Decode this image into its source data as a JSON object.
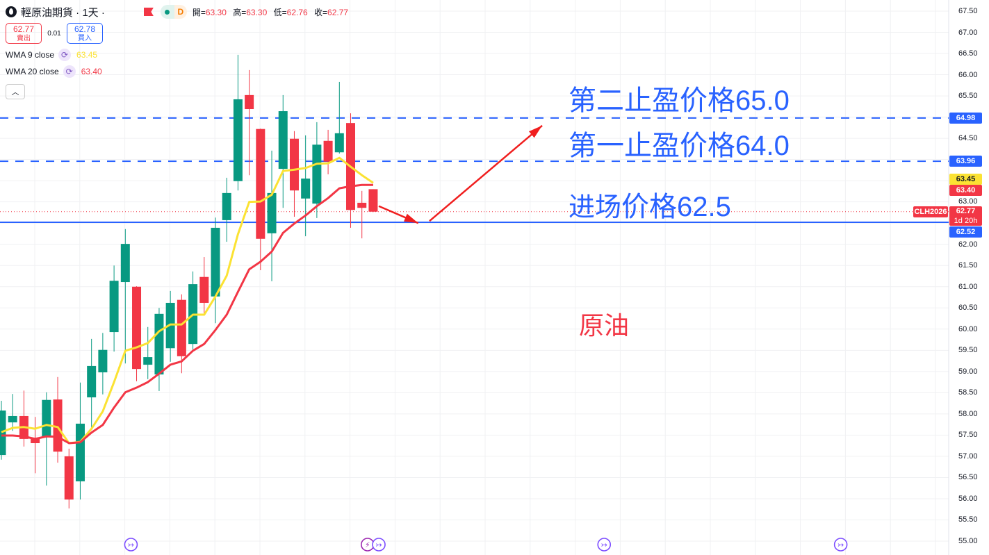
{
  "header": {
    "symbol_title": "輕原油期貨 · 1天 ·",
    "ohlc": [
      {
        "label": "開=",
        "value": "63.30"
      },
      {
        "label": "高=",
        "value": "63.30"
      },
      {
        "label": "低=",
        "value": "62.76"
      },
      {
        "label": "收=",
        "value": "62.77"
      }
    ],
    "market_status": "D",
    "sell": {
      "price": "62.77",
      "label": "賣出"
    },
    "spread": "0.01",
    "buy": {
      "price": "62.78",
      "label": "買入"
    },
    "indicators": [
      {
        "name": "WMA 9 close",
        "value": "63.45",
        "color": "#fbe233"
      },
      {
        "name": "WMA 20 close",
        "value": "63.40",
        "color": "#f23645"
      }
    ],
    "collapse_icon": "chevron-up-icon"
  },
  "annotations": {
    "tp2": "第二止盈价格65.0",
    "tp1": "第一止盈价格64.0",
    "entry_a": "进场",
    "entry_b": "价格62.5",
    "label": "原油"
  },
  "colors": {
    "up": "#089981",
    "down": "#f23645",
    "wma9": "#fbe233",
    "wma20": "#f23645",
    "lines": "#2962ff",
    "events": "#7c4dff"
  },
  "chart_data": {
    "type": "candlestick",
    "ylim": [
      55.0,
      67.5
    ],
    "grid": true,
    "y_tick_labels": [
      "67.50",
      "67.00",
      "66.50",
      "66.00",
      "65.50",
      "64.50",
      "63.00",
      "62.00",
      "61.50",
      "61.00",
      "60.50",
      "60.00",
      "59.50",
      "59.00",
      "58.50",
      "58.00",
      "57.50",
      "57.00",
      "56.50",
      "56.00",
      "55.50",
      "55.00"
    ],
    "candles": [
      [
        57.03,
        58.31,
        56.92,
        58.08
      ],
      [
        57.8,
        58.47,
        57.6,
        57.95
      ],
      [
        57.95,
        58.55,
        57.23,
        57.41
      ],
      [
        57.44,
        57.93,
        56.6,
        57.31
      ],
      [
        57.46,
        58.51,
        56.31,
        58.33
      ],
      [
        58.34,
        58.87,
        56.85,
        57.11
      ],
      [
        57.0,
        57.18,
        55.77,
        55.98
      ],
      [
        56.41,
        58.74,
        55.98,
        57.77
      ],
      [
        58.39,
        59.77,
        57.62,
        59.13
      ],
      [
        58.98,
        59.91,
        58.46,
        59.51
      ],
      [
        59.93,
        61.5,
        59.47,
        61.14
      ],
      [
        61.11,
        62.36,
        59.19,
        62.01
      ],
      [
        61.0,
        61.01,
        58.77,
        59.06
      ],
      [
        59.16,
        60.05,
        58.82,
        59.34
      ],
      [
        58.93,
        60.5,
        58.54,
        60.36
      ],
      [
        59.55,
        60.9,
        59.23,
        60.62
      ],
      [
        60.69,
        60.82,
        58.96,
        59.36
      ],
      [
        59.65,
        61.36,
        59.52,
        61.06
      ],
      [
        61.23,
        61.7,
        60.34,
        60.62
      ],
      [
        60.77,
        62.63,
        60.14,
        62.39
      ],
      [
        62.57,
        63.57,
        62.06,
        63.21
      ],
      [
        63.49,
        66.47,
        63.27,
        65.42
      ],
      [
        65.52,
        66.11,
        63.63,
        65.19
      ],
      [
        64.72,
        64.73,
        61.39,
        62.13
      ],
      [
        62.26,
        64.21,
        61.13,
        63.21
      ],
      [
        63.78,
        65.52,
        62.86,
        65.14
      ],
      [
        64.49,
        64.67,
        62.65,
        63.27
      ],
      [
        63.08,
        64.57,
        62.19,
        63.55
      ],
      [
        62.96,
        64.88,
        62.62,
        64.35
      ],
      [
        64.44,
        64.7,
        63.65,
        63.95
      ],
      [
        64.17,
        65.83,
        64.14,
        64.62
      ],
      [
        64.86,
        65.09,
        62.39,
        62.81
      ],
      [
        62.98,
        63.26,
        62.14,
        62.86
      ],
      [
        63.3,
        63.3,
        62.76,
        62.77
      ]
    ],
    "candle_format": [
      "open",
      "high",
      "low",
      "close"
    ],
    "series": [
      {
        "name": "WMA 9 close",
        "values": [
          57.57,
          57.67,
          57.69,
          57.65,
          57.74,
          57.69,
          57.31,
          57.34,
          57.65,
          58.06,
          58.75,
          59.49,
          59.57,
          59.67,
          59.95,
          60.11,
          60.11,
          60.34,
          60.34,
          60.77,
          61.26,
          62.24,
          63.0,
          63.01,
          63.17,
          63.73,
          63.76,
          63.8,
          63.9,
          63.91,
          64.04,
          63.83,
          63.63,
          63.45
        ]
      },
      {
        "name": "WMA 20 close",
        "values": [
          57.49,
          57.49,
          57.47,
          57.41,
          57.47,
          57.46,
          57.31,
          57.33,
          57.56,
          57.74,
          58.15,
          58.51,
          58.62,
          58.75,
          58.95,
          59.16,
          59.24,
          59.49,
          59.65,
          59.98,
          60.34,
          60.88,
          61.41,
          61.59,
          61.83,
          62.27,
          62.49,
          62.68,
          62.9,
          63.09,
          63.32,
          63.37,
          63.4,
          63.4
        ]
      }
    ],
    "horizontal_lines": [
      {
        "price": 64.98,
        "style": "dashed",
        "label": "64.98"
      },
      {
        "price": 63.96,
        "style": "dashed",
        "label": "63.96"
      },
      {
        "price": 62.52,
        "style": "solid",
        "label": "62.52"
      }
    ],
    "price_badges": [
      {
        "label": "63.45",
        "bg": "#fbe233",
        "fg": "#131722"
      },
      {
        "label": "63.40",
        "bg": "#f23645",
        "fg": "#ffffff"
      }
    ],
    "last_price": {
      "symbol": "CLH2026",
      "price": "62.77",
      "countdown": "1d 20h",
      "value": 62.77
    },
    "event_markers": [
      {
        "bar": 12,
        "type": "dividend-arrow-icon"
      },
      {
        "bar": 33,
        "type": "lightning-icon"
      },
      {
        "bar": 34,
        "type": "dividend-arrow-icon"
      },
      {
        "bar": 54,
        "type": "dividend-arrow-icon"
      },
      {
        "bar": 75,
        "type": "dividend-arrow-icon"
      }
    ],
    "arrows": [
      {
        "from": [
          33.5,
          62.9
        ],
        "to": [
          37,
          62.5
        ]
      },
      {
        "from": [
          38,
          62.55
        ],
        "to": [
          48,
          64.8
        ]
      }
    ]
  }
}
